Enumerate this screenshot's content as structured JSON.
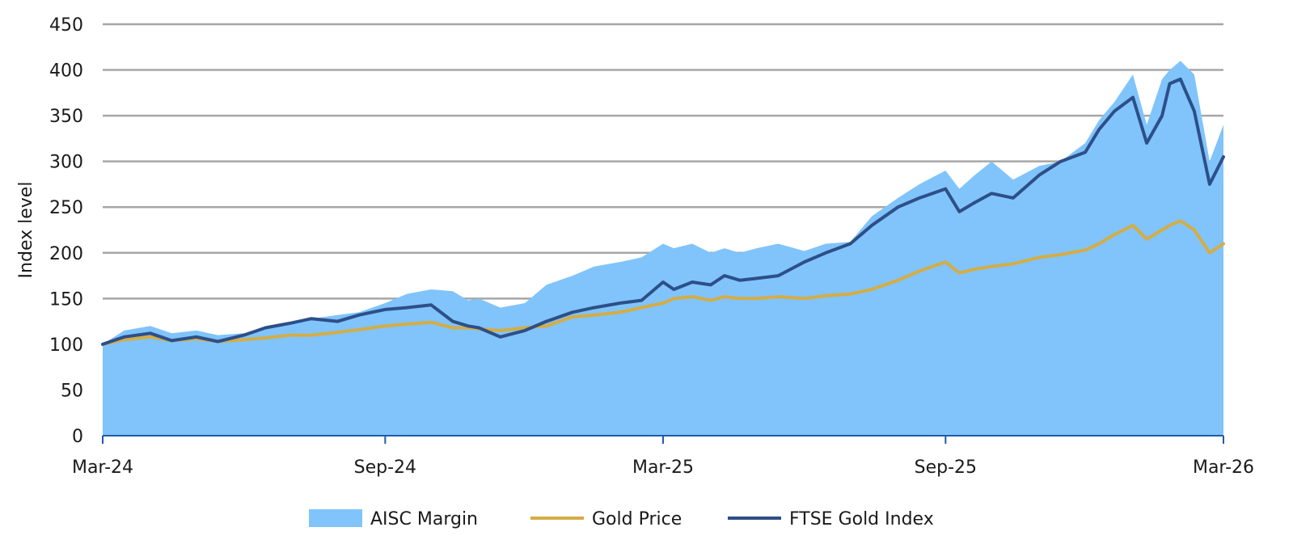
{
  "chart_data": {
    "type": "area",
    "title": "",
    "xlabel": "",
    "ylabel": "Index level",
    "ylim": [
      0,
      450
    ],
    "yticks": [
      0,
      50,
      100,
      150,
      200,
      250,
      300,
      350,
      400,
      450
    ],
    "ytick_labels": [
      "0",
      "50",
      "100",
      "150",
      "200",
      "250",
      "300",
      "350",
      "400",
      "450"
    ],
    "xlim": [
      "2024-03-01",
      "2026-03-01"
    ],
    "xticks": [
      "2024-03-01",
      "2024-09-01",
      "2025-03-01",
      "2025-09-01",
      "2026-03-01"
    ],
    "xtick_labels": [
      "Mar-24",
      "Sep-24",
      "Mar-25",
      "Sep-25",
      "Mar-26"
    ],
    "grid": true,
    "legend_position": "bottom",
    "x": [
      "2024-03-01",
      "2024-03-15",
      "2024-04-01",
      "2024-04-15",
      "2024-05-01",
      "2024-05-15",
      "2024-06-01",
      "2024-06-15",
      "2024-07-01",
      "2024-07-15",
      "2024-08-01",
      "2024-08-15",
      "2024-09-01",
      "2024-09-15",
      "2024-10-01",
      "2024-10-15",
      "2024-10-25",
      "2024-11-01",
      "2024-11-15",
      "2024-12-01",
      "2024-12-15",
      "2025-01-01",
      "2025-01-15",
      "2025-02-01",
      "2025-02-15",
      "2025-03-01",
      "2025-03-08",
      "2025-03-20",
      "2025-04-01",
      "2025-04-10",
      "2025-04-20",
      "2025-05-01",
      "2025-05-15",
      "2025-06-01",
      "2025-06-15",
      "2025-07-01",
      "2025-07-15",
      "2025-08-01",
      "2025-08-15",
      "2025-09-01",
      "2025-09-10",
      "2025-09-20",
      "2025-10-01",
      "2025-10-15",
      "2025-11-01",
      "2025-11-15",
      "2025-12-01",
      "2025-12-10",
      "2025-12-20",
      "2026-01-01",
      "2026-01-10",
      "2026-01-20",
      "2026-01-25",
      "2026-02-01",
      "2026-02-10",
      "2026-02-20",
      "2026-03-01"
    ],
    "series": [
      {
        "name": "AISC Margin",
        "type": "area",
        "color": "#80c4fb",
        "values": [
          100,
          115,
          120,
          112,
          115,
          110,
          112,
          118,
          122,
          128,
          132,
          135,
          145,
          155,
          160,
          158,
          148,
          150,
          140,
          145,
          165,
          175,
          185,
          190,
          195,
          210,
          205,
          210,
          200,
          205,
          200,
          205,
          210,
          202,
          210,
          212,
          240,
          260,
          275,
          290,
          270,
          285,
          300,
          280,
          295,
          300,
          320,
          345,
          365,
          395,
          340,
          390,
          400,
          410,
          395,
          300,
          340
        ]
      },
      {
        "name": "Gold Price",
        "type": "line",
        "color": "#d4ad45",
        "values": [
          100,
          105,
          108,
          104,
          106,
          103,
          105,
          107,
          110,
          110,
          113,
          116,
          120,
          122,
          124,
          118,
          118,
          117,
          115,
          118,
          120,
          130,
          132,
          135,
          140,
          145,
          150,
          152,
          148,
          152,
          150,
          150,
          152,
          150,
          153,
          155,
          160,
          170,
          180,
          190,
          178,
          182,
          185,
          188,
          195,
          198,
          203,
          210,
          220,
          230,
          215,
          225,
          230,
          235,
          225,
          200,
          210
        ]
      },
      {
        "name": "FTSE Gold Index",
        "type": "line",
        "color": "#2d4f88",
        "values": [
          100,
          108,
          112,
          104,
          108,
          103,
          110,
          118,
          123,
          128,
          125,
          132,
          138,
          140,
          143,
          125,
          120,
          118,
          108,
          115,
          125,
          135,
          140,
          145,
          148,
          168,
          160,
          168,
          165,
          175,
          170,
          172,
          175,
          190,
          200,
          210,
          230,
          250,
          260,
          270,
          245,
          255,
          265,
          260,
          285,
          300,
          310,
          335,
          355,
          370,
          320,
          350,
          385,
          390,
          355,
          275,
          305
        ]
      }
    ]
  },
  "legend": [
    {
      "label": "AISC Margin",
      "color": "#80c4fb",
      "kind": "box"
    },
    {
      "label": "Gold Price",
      "color": "#d4ad45",
      "kind": "line"
    },
    {
      "label": "FTSE Gold Index",
      "color": "#2d4f88",
      "kind": "line"
    }
  ]
}
